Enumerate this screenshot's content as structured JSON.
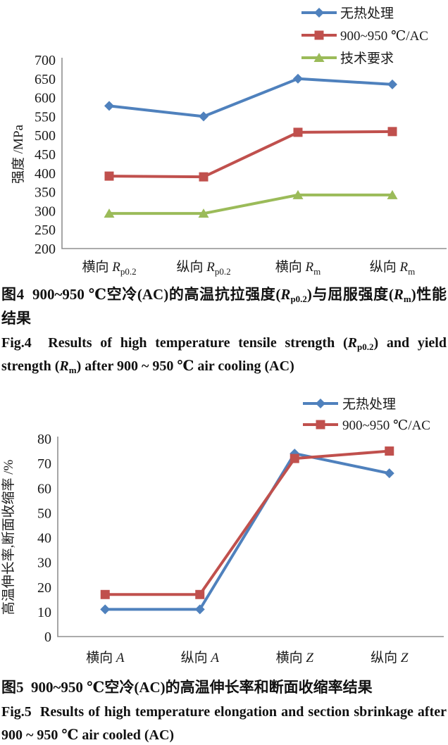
{
  "colors": {
    "series_blue": "#4F81BD",
    "series_red": "#C0504D",
    "series_green": "#9BBB59",
    "axis_line": "#8f8f8f",
    "text": "#1a1a1a"
  },
  "chart_data": [
    {
      "type": "line",
      "title": "",
      "xlabel": "",
      "ylabel": "强度 /MPa",
      "ylim": [
        200,
        700
      ],
      "ytick_step": 50,
      "grid": false,
      "legend_position": "top-right",
      "categories": [
        {
          "prefix": "横向 ",
          "symbol": "R",
          "sub": "p0.2"
        },
        {
          "prefix": "纵向 ",
          "symbol": "R",
          "sub": "p0.2"
        },
        {
          "prefix": "横向 ",
          "symbol": "R",
          "sub": "m"
        },
        {
          "prefix": "纵向 ",
          "symbol": "R",
          "sub": "m"
        }
      ],
      "series": [
        {
          "name": "无热处理",
          "marker": "diamond",
          "color": "#4F81BD",
          "values": [
            578,
            550,
            650,
            635
          ]
        },
        {
          "name": "900~950 ℃/AC",
          "marker": "square",
          "color": "#C0504D",
          "values": [
            392,
            390,
            508,
            510
          ]
        },
        {
          "name": "技术要求",
          "marker": "triangle",
          "color": "#9BBB59",
          "values": [
            293,
            293,
            342,
            342
          ]
        }
      ]
    },
    {
      "type": "line",
      "title": "",
      "xlabel": "",
      "ylabel": "高温伸长率,断面收缩率 /%",
      "ylim": [
        0,
        80
      ],
      "ytick_step": 10,
      "grid": false,
      "legend_position": "top-right",
      "categories": [
        {
          "prefix": "横向 ",
          "symbol": "A",
          "sub": ""
        },
        {
          "prefix": "纵向 ",
          "symbol": "A",
          "sub": ""
        },
        {
          "prefix": "横向 ",
          "symbol": "Z",
          "sub": ""
        },
        {
          "prefix": "纵向 ",
          "symbol": "Z",
          "sub": ""
        }
      ],
      "series": [
        {
          "name": "无热处理",
          "marker": "diamond",
          "color": "#4F81BD",
          "values": [
            11,
            11,
            74,
            66
          ]
        },
        {
          "name": "900~950 ℃/AC",
          "marker": "square",
          "color": "#C0504D",
          "values": [
            17,
            17,
            72,
            75
          ]
        }
      ]
    }
  ],
  "captions": {
    "fig4_zh": [
      {
        "t": "图4  900~950 ℃空冷(AC)的高温抗拉强度("
      },
      {
        "t": "R",
        "s": "it"
      },
      {
        "t": "p0.2",
        "s": "sub"
      },
      {
        "t": ")与屈服强度("
      },
      {
        "t": "R",
        "s": "it"
      },
      {
        "t": "m",
        "s": "sub"
      },
      {
        "t": ")性能结果"
      }
    ],
    "fig4_en": [
      {
        "t": "Fig.4  Results of high temperature tensile strength ("
      },
      {
        "t": "R",
        "s": "it"
      },
      {
        "t": "p0.2",
        "s": "sub"
      },
      {
        "t": ") and yield strength ("
      },
      {
        "t": "R",
        "s": "it"
      },
      {
        "t": "m",
        "s": "sub"
      },
      {
        "t": ") after 900 ~ 950 ℃ air cooling (AC)"
      }
    ],
    "fig5_zh": [
      {
        "t": "图5  900~950 ℃空冷(AC)的高温伸长率和断面收缩率结果"
      }
    ],
    "fig5_en": [
      {
        "t": "Fig.5  Results of high temperature elongation and section sbrinkage after 900 ~ 950 ℃ air cooled (AC)"
      }
    ]
  }
}
